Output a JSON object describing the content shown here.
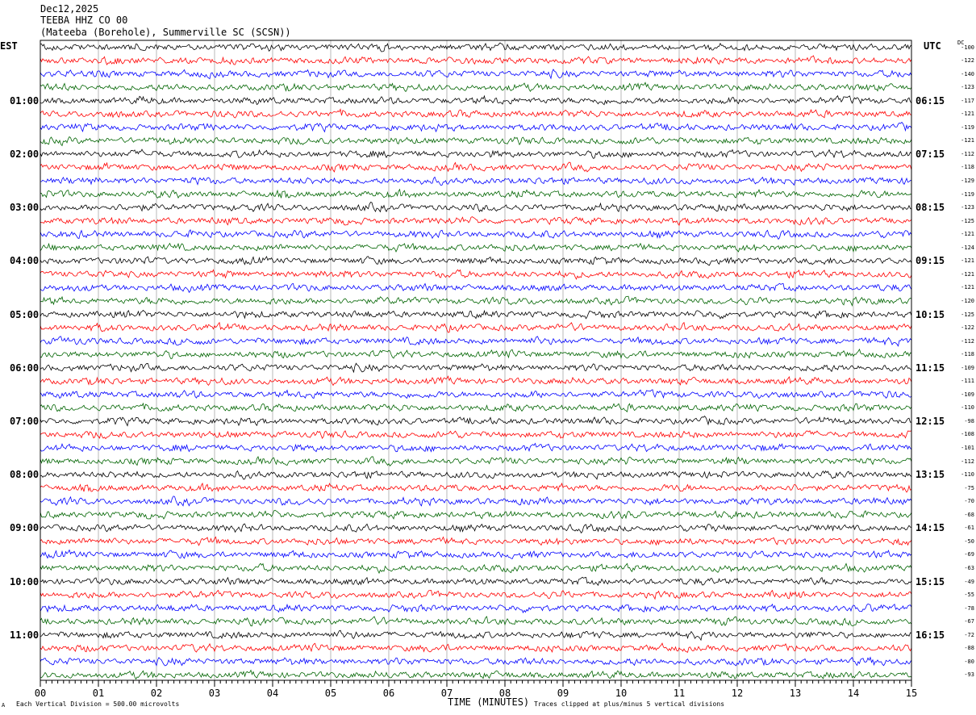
{
  "header": {
    "date": "Dec12,2025",
    "station": "TEEBA HHZ CO 00",
    "location": "(Mateeba (Borehole), Summerville SC (SCSN))"
  },
  "labels": {
    "left_zone": "EST",
    "right_zone": "UTC",
    "dc": "DC",
    "xlabel": "TIME (MINUTES)",
    "footer_left": "Each Vertical Division =  500.00 microvolts",
    "footer_right": "Traces clipped at plus/minus 5 vertical divisions",
    "footer_mark": "A"
  },
  "colors": [
    "#000000",
    "#ff0000",
    "#0000ff",
    "#006400"
  ],
  "chart_data": {
    "type": "line",
    "x_range": [
      0,
      15
    ],
    "x_ticks": [
      "00",
      "01",
      "02",
      "03",
      "04",
      "05",
      "06",
      "07",
      "08",
      "09",
      "10",
      "11",
      "12",
      "13",
      "14",
      "15"
    ],
    "left_time_labels": [
      "01:00",
      "02:00",
      "03:00",
      "04:00",
      "05:00",
      "06:00",
      "07:00",
      "08:00",
      "09:00",
      "10:00",
      "11:00"
    ],
    "right_time_labels": [
      "06:15",
      "07:15",
      "08:15",
      "09:15",
      "10:15",
      "11:15",
      "12:15",
      "13:15",
      "14:15",
      "15:15",
      "16:15"
    ],
    "dc_offsets": [
      "-100",
      "-122",
      "-140",
      "-123",
      "-117",
      "-121",
      "-119",
      "-121",
      "-112",
      "-118",
      "-129",
      "-119",
      "-123",
      "-125",
      "-121",
      "-124",
      "-121",
      "-121",
      "-121",
      "-120",
      "-125",
      "-122",
      "-112",
      "-118",
      "-109",
      "-111",
      "-109",
      "-110",
      "-98",
      "-108",
      "-101",
      "-112",
      "-110",
      "-75",
      "-70",
      "-68",
      "-61",
      "-50",
      "-69",
      "-63",
      "-49",
      "-55",
      "-78",
      "-67",
      "-72",
      "-88",
      "-80",
      "-93"
    ],
    "trace_count": 48,
    "traces_per_hour": 4,
    "grid": "vertical"
  }
}
